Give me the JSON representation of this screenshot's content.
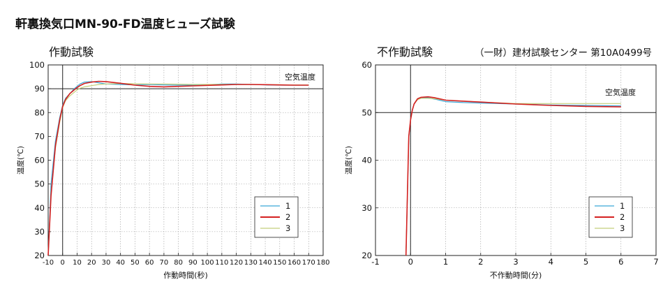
{
  "page_title": "軒裏換気口MN-90-FD温度ヒューズ試験",
  "chart_data": [
    {
      "type": "line",
      "title": "作動試験",
      "subtitle": "",
      "xlabel": "作動時間(秒)",
      "ylabel": "温度(℃)",
      "xlim": [
        -10,
        180
      ],
      "ylim": [
        20,
        100
      ],
      "xticks": [
        -10,
        0,
        10,
        20,
        30,
        40,
        50,
        60,
        70,
        80,
        90,
        100,
        110,
        120,
        130,
        140,
        150,
        160,
        170,
        180
      ],
      "yticks": [
        20,
        30,
        40,
        50,
        60,
        70,
        80,
        90,
        100
      ],
      "grid": true,
      "legend": "bottom-right",
      "reference_line": {
        "label": "空気温度",
        "y": 90
      },
      "vertical_line_x": 0,
      "series": [
        {
          "name": "1",
          "color": "#3aa6d6",
          "x": [
            -10,
            -8,
            -5,
            -2,
            0,
            2,
            5,
            8,
            10,
            12,
            15,
            20,
            25,
            30,
            40,
            50,
            60,
            70,
            80,
            90,
            100,
            110,
            120,
            130,
            140,
            150,
            160,
            170
          ],
          "y": [
            20,
            50,
            68,
            78,
            83,
            86,
            88,
            90,
            91,
            92,
            92.8,
            93,
            92.5,
            92,
            91.8,
            91.6,
            91.8,
            91.6,
            91.5,
            91.5,
            91.7,
            92,
            92,
            91.8,
            91.6,
            91.5,
            91.5,
            91.5
          ]
        },
        {
          "name": "2",
          "color": "#d42020",
          "x": [
            -10,
            -8,
            -5,
            -2,
            0,
            2,
            5,
            8,
            10,
            12,
            15,
            20,
            25,
            30,
            40,
            50,
            60,
            70,
            80,
            90,
            100,
            110,
            120,
            130,
            140,
            150,
            160,
            170
          ],
          "y": [
            20,
            45,
            66,
            77,
            82.5,
            85.5,
            88,
            89.5,
            90.5,
            91.3,
            92.2,
            92.8,
            93.1,
            93,
            92.3,
            91.5,
            91,
            90.8,
            91,
            91.2,
            91.4,
            91.6,
            91.8,
            91.8,
            91.7,
            91.6,
            91.5,
            91.5
          ]
        },
        {
          "name": "3",
          "color": "#c4cf7a",
          "x": [
            -10,
            -8,
            -5,
            -2,
            0,
            2,
            5,
            8,
            10,
            12,
            15,
            20,
            25,
            30,
            40,
            50,
            60,
            70,
            80,
            90,
            100,
            110,
            120,
            130,
            140,
            150,
            160,
            170
          ],
          "y": [
            20,
            46,
            65,
            76,
            82,
            85,
            87,
            88.5,
            89.5,
            90.2,
            90.8,
            91.3,
            91.8,
            92,
            92.2,
            92.1,
            92,
            92,
            91.9,
            91.8,
            91.8,
            91.8,
            91.8,
            91.8,
            91.7,
            91.7,
            91.6,
            91.6
          ]
        }
      ]
    },
    {
      "type": "line",
      "title": "不作動試験",
      "subtitle": "（一財）建材試験センター 第10A0499号",
      "xlabel": "不作動時間(分)",
      "ylabel": "温度(℃)",
      "xlim": [
        -1,
        7
      ],
      "ylim": [
        20,
        60
      ],
      "xticks": [
        -1,
        0,
        1,
        2,
        3,
        4,
        5,
        6,
        7
      ],
      "yticks": [
        20,
        30,
        40,
        50,
        60
      ],
      "grid": true,
      "legend": "bottom-right",
      "reference_line": {
        "label": "空気温度",
        "y": 50
      },
      "vertical_line_x": 0,
      "series": [
        {
          "name": "1",
          "color": "#3aa6d6",
          "x": [
            -0.13,
            -0.05,
            0,
            0.05,
            0.1,
            0.2,
            0.3,
            0.5,
            0.7,
            1,
            1.5,
            2,
            3,
            4,
            5,
            6
          ],
          "y": [
            20,
            45,
            48.5,
            50.5,
            51.8,
            52.8,
            53.1,
            53.1,
            52.8,
            52.3,
            52.1,
            52,
            51.8,
            51.6,
            51.5,
            51.4
          ]
        },
        {
          "name": "2",
          "color": "#d42020",
          "x": [
            -0.13,
            -0.05,
            0,
            0.05,
            0.1,
            0.2,
            0.3,
            0.5,
            0.7,
            1,
            1.5,
            2,
            3,
            4,
            5,
            6
          ],
          "y": [
            20,
            45,
            48.5,
            50.5,
            51.8,
            52.9,
            53.2,
            53.3,
            53.1,
            52.6,
            52.4,
            52.2,
            51.8,
            51.5,
            51.3,
            51.2
          ]
        },
        {
          "name": "3",
          "color": "#c4cf7a",
          "x": [
            -0.13,
            -0.05,
            0,
            0.05,
            0.1,
            0.2,
            0.3,
            0.5,
            0.7,
            1,
            1.5,
            2,
            3,
            4,
            5,
            6
          ],
          "y": [
            20,
            45,
            48.5,
            50.5,
            51.8,
            52.7,
            53,
            53,
            52.9,
            52.6,
            52.4,
            52.2,
            51.9,
            51.9,
            51.9,
            51.9
          ]
        }
      ]
    }
  ]
}
